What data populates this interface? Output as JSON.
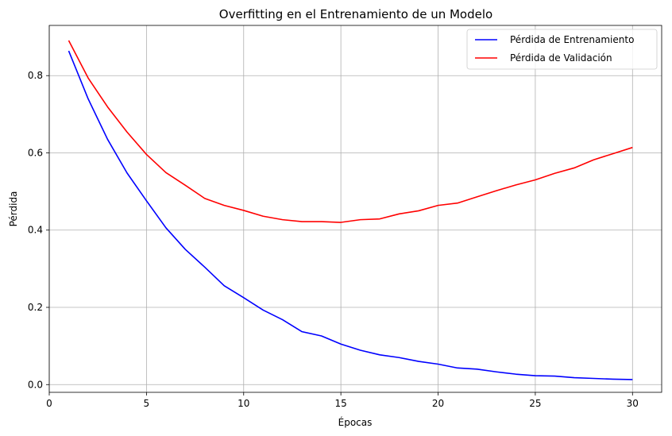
{
  "chart_data": {
    "type": "line",
    "title": "Overfitting en el Entrenamiento de un Modelo",
    "xlabel": "Épocas",
    "ylabel": "Pérdida",
    "xlim": [
      0,
      31.5
    ],
    "ylim": [
      -0.02,
      0.93
    ],
    "xticks": [
      0,
      5,
      10,
      15,
      20,
      25,
      30
    ],
    "yticks": [
      0.0,
      0.2,
      0.4,
      0.6,
      0.8
    ],
    "grid": true,
    "legend_position": "top-right",
    "x": [
      1,
      2,
      3,
      4,
      5,
      6,
      7,
      8,
      9,
      10,
      11,
      12,
      13,
      14,
      15,
      16,
      17,
      18,
      19,
      20,
      21,
      22,
      23,
      24,
      25,
      26,
      27,
      28,
      29,
      30
    ],
    "series": [
      {
        "name": "Pérdida de Entrenamiento",
        "color": "#0000ff",
        "values": [
          0.864,
          0.74,
          0.635,
          0.548,
          0.476,
          0.406,
          0.35,
          0.304,
          0.256,
          0.225,
          0.193,
          0.168,
          0.137,
          0.126,
          0.105,
          0.089,
          0.077,
          0.07,
          0.06,
          0.053,
          0.043,
          0.04,
          0.033,
          0.027,
          0.023,
          0.022,
          0.018,
          0.016,
          0.014,
          0.013
        ]
      },
      {
        "name": "Pérdida de Validación",
        "color": "#ff0000",
        "values": [
          0.891,
          0.794,
          0.719,
          0.654,
          0.596,
          0.549,
          0.516,
          0.482,
          0.464,
          0.451,
          0.436,
          0.427,
          0.422,
          0.422,
          0.42,
          0.427,
          0.429,
          0.442,
          0.45,
          0.464,
          0.47,
          0.486,
          0.502,
          0.517,
          0.53,
          0.547,
          0.561,
          0.582,
          0.598,
          0.614
        ]
      }
    ]
  }
}
